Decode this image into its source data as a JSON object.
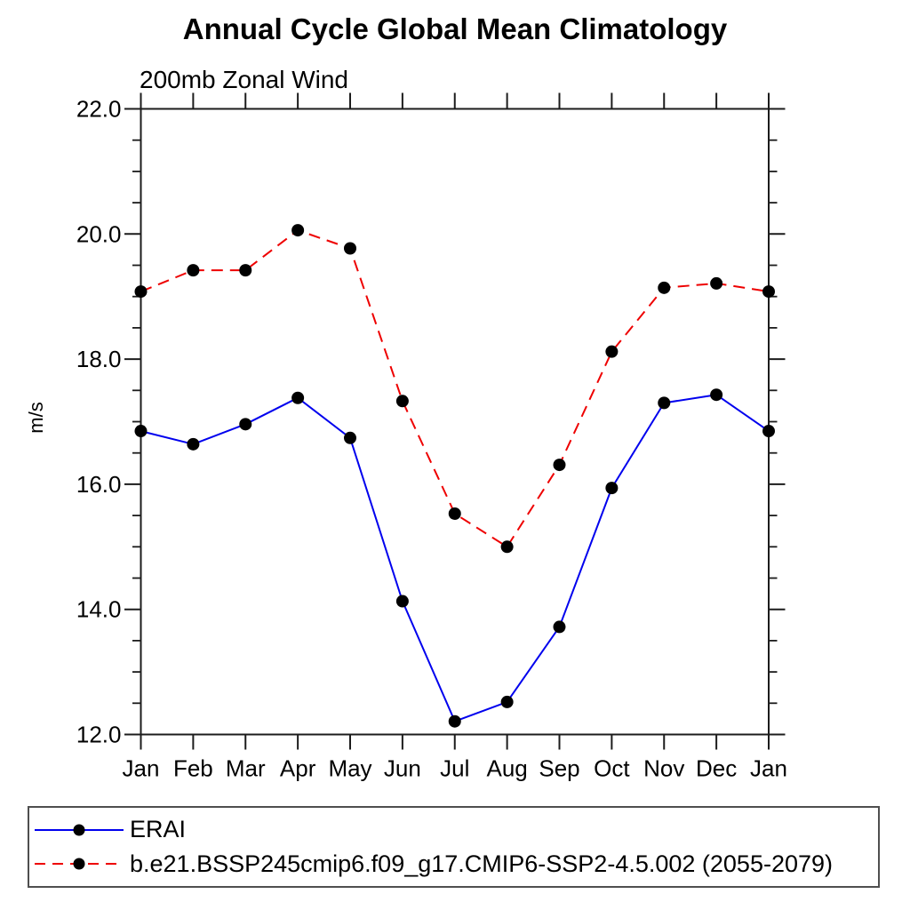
{
  "title": "Annual Cycle Global Mean Climatology",
  "subtitle": "200mb Zonal Wind",
  "ylabel": "m/s",
  "chart_data": {
    "type": "line",
    "categories": [
      "Jan",
      "Feb",
      "Mar",
      "Apr",
      "May",
      "Jun",
      "Jul",
      "Aug",
      "Sep",
      "Oct",
      "Nov",
      "Dec",
      "Jan"
    ],
    "series": [
      {
        "name": "ERAI",
        "color": "#0000ee",
        "line_style": "solid",
        "marker": "filled-circle",
        "marker_color": "#000000",
        "values": [
          16.85,
          16.64,
          16.96,
          17.38,
          16.74,
          14.13,
          12.21,
          12.52,
          13.72,
          15.94,
          17.3,
          17.43,
          16.85
        ]
      },
      {
        "name": "b.e21.BSSP245cmip6.f09_g17.CMIP6-SSP2-4.5.002 (2055-2079)",
        "color": "#ee0000",
        "line_style": "dashed",
        "marker": "filled-circle",
        "marker_color": "#000000",
        "values": [
          19.08,
          19.42,
          19.42,
          20.06,
          19.77,
          17.33,
          15.53,
          15.0,
          16.31,
          18.12,
          19.14,
          19.21,
          19.08
        ]
      }
    ],
    "xlabel": "",
    "ylabel": "m/s",
    "ylim": [
      12.0,
      22.0
    ],
    "ytick_labels": [
      "12.0",
      "14.0",
      "16.0",
      "18.0",
      "20.0",
      "22.0"
    ],
    "ytick_major_interval": 2.0,
    "ytick_minor_interval": 0.5,
    "grid": false,
    "legend_position": "bottom-left",
    "axis_color": "#1c1c1c"
  }
}
